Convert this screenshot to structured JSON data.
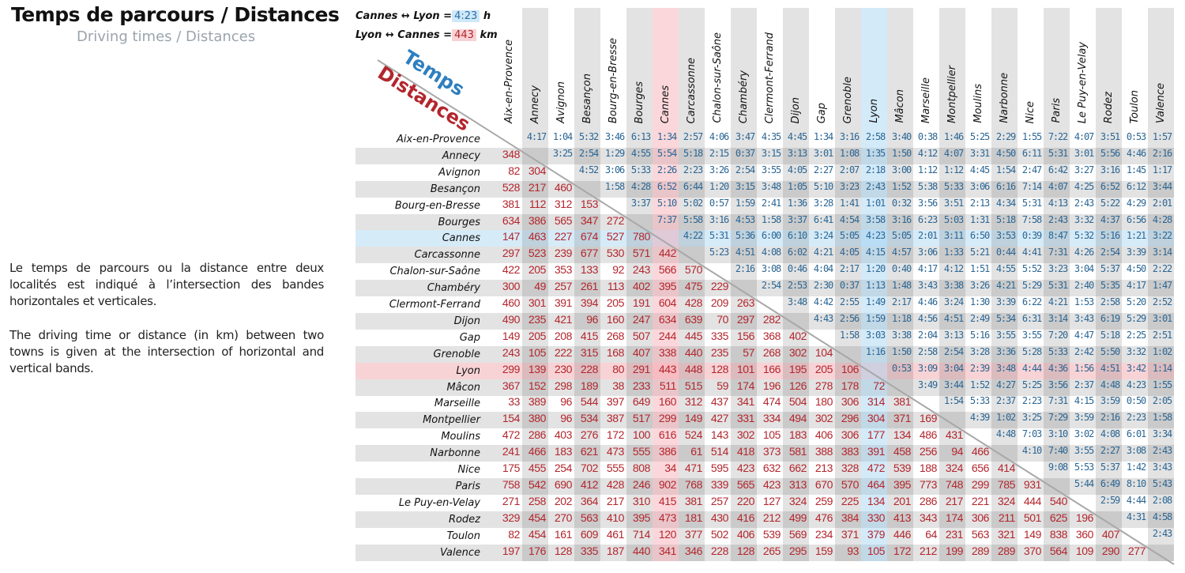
{
  "title": "Temps de parcours / Distances",
  "subtitle": "Driving times / Distances",
  "description_fr": "Le temps de parcours ou la distance entre deux localités est indiqué à l’intersection des bandes horizontales et verticales.",
  "description_en": "The driving time or distance (in km) between two towns is given at the intersection of horizontal and vertical bands.",
  "legend": {
    "time_example": {
      "pair": "Cannes ↔ Lyon =",
      "value": "4:23",
      "unit": "h"
    },
    "distance_example": {
      "pair": "Lyon ↔ Cannes =",
      "value": "443",
      "unit": "km"
    },
    "upper_label": "Temps",
    "lower_label": "Distances"
  },
  "colors": {
    "time_text": "#2b6694",
    "distance_text": "#b3262d",
    "cannes_band": "#f8d2d5",
    "lyon_band": "#cfe8f8",
    "band_gray": "#e2e2e2"
  },
  "highlight": {
    "pink_city": "Cannes",
    "blue_city": "Lyon"
  },
  "cities": [
    "Aix-en-Provence",
    "Annecy",
    "Avignon",
    "Besançon",
    "Bourg-en-Bresse",
    "Bourges",
    "Cannes",
    "Carcassonne",
    "Chalon-sur-Saône",
    "Chambéry",
    "Clermont-Ferrand",
    "Dijon",
    "Gap",
    "Grenoble",
    "Lyon",
    "Mâcon",
    "Marseille",
    "Montpellier",
    "Moulins",
    "Narbonne",
    "Nice",
    "Paris",
    "Le Puy-en-Velay",
    "Rodez",
    "Toulon",
    "Valence"
  ],
  "matrix": [
    [
      "",
      "4:17",
      "1:04",
      "5:32",
      "3:46",
      "6:13",
      "1:34",
      "2:57",
      "4:06",
      "3:47",
      "4:35",
      "4:45",
      "1:34",
      "3:16",
      "2:58",
      "3:40",
      "0:38",
      "1:46",
      "5:25",
      "2:29",
      "1:55",
      "7:22",
      "4:07",
      "3:51",
      "0:53",
      "1:57"
    ],
    [
      "348",
      "",
      "3:25",
      "2:54",
      "1:29",
      "4:55",
      "5:54",
      "5:18",
      "2:15",
      "0:37",
      "3:15",
      "3:13",
      "3:01",
      "1:08",
      "1:35",
      "1:50",
      "4:12",
      "4:07",
      "3:31",
      "4:50",
      "6:11",
      "5:31",
      "3:01",
      "5:56",
      "4:46",
      "2:16"
    ],
    [
      "82",
      "304",
      "",
      "4:52",
      "3:06",
      "5:33",
      "2:26",
      "2:23",
      "3:26",
      "2:54",
      "3:55",
      "4:05",
      "2:27",
      "2:07",
      "2:18",
      "3:00",
      "1:12",
      "1:12",
      "4:45",
      "1:54",
      "2:47",
      "6:42",
      "3:27",
      "3:16",
      "1:45",
      "1:17"
    ],
    [
      "528",
      "217",
      "460",
      "",
      "1:58",
      "4:28",
      "6:52",
      "6:44",
      "1:20",
      "3:15",
      "3:48",
      "1:05",
      "5:10",
      "3:23",
      "2:43",
      "1:52",
      "5:38",
      "5:33",
      "3:06",
      "6:16",
      "7:14",
      "4:07",
      "4:25",
      "6:52",
      "6:12",
      "3:44"
    ],
    [
      "381",
      "112",
      "312",
      "153",
      "",
      "3:37",
      "5:10",
      "5:02",
      "0:57",
      "1:59",
      "2:41",
      "1:36",
      "3:28",
      "1:41",
      "1:01",
      "0:32",
      "3:56",
      "3:51",
      "2:13",
      "4:34",
      "5:31",
      "4:13",
      "2:43",
      "5:22",
      "4:29",
      "2:01"
    ],
    [
      "634",
      "386",
      "565",
      "347",
      "272",
      "",
      "7:37",
      "5:58",
      "3:16",
      "4:53",
      "1:58",
      "3:37",
      "6:41",
      "4:54",
      "3:58",
      "3:16",
      "6:23",
      "5:03",
      "1:31",
      "5:18",
      "7:58",
      "2:43",
      "3:32",
      "4:37",
      "6:56",
      "4:28"
    ],
    [
      "147",
      "463",
      "227",
      "674",
      "527",
      "780",
      "",
      "4:22",
      "5:31",
      "5:36",
      "6:00",
      "6:10",
      "3:24",
      "5:05",
      "4:23",
      "5:05",
      "2:01",
      "3:11",
      "6:50",
      "3:53",
      "0:39",
      "8:47",
      "5:32",
      "5:16",
      "1:21",
      "3:22"
    ],
    [
      "297",
      "523",
      "239",
      "677",
      "530",
      "571",
      "442",
      "",
      "5:23",
      "4:51",
      "4:08",
      "6:02",
      "4:21",
      "4:05",
      "4:15",
      "4:57",
      "3:06",
      "1:33",
      "5:21",
      "0:44",
      "4:41",
      "7:31",
      "4:26",
      "2:54",
      "3:39",
      "3:14"
    ],
    [
      "422",
      "205",
      "353",
      "133",
      "92",
      "243",
      "566",
      "570",
      "",
      "2:16",
      "3:08",
      "0:46",
      "4:04",
      "2:17",
      "1:20",
      "0:40",
      "4:17",
      "4:12",
      "1:51",
      "4:55",
      "5:52",
      "3:23",
      "3:04",
      "5:37",
      "4:50",
      "2:22"
    ],
    [
      "300",
      "49",
      "257",
      "261",
      "113",
      "402",
      "395",
      "475",
      "229",
      "",
      "2:54",
      "2:53",
      "2:30",
      "0:37",
      "1:13",
      "1:48",
      "3:43",
      "3:38",
      "3:26",
      "4:21",
      "5:29",
      "5:31",
      "2:40",
      "5:35",
      "4:17",
      "1:47"
    ],
    [
      "460",
      "301",
      "391",
      "394",
      "205",
      "191",
      "604",
      "428",
      "209",
      "263",
      "",
      "3:48",
      "4:42",
      "2:55",
      "1:49",
      "2:17",
      "4:46",
      "3:24",
      "1:30",
      "3:39",
      "6:22",
      "4:21",
      "1:53",
      "2:58",
      "5:20",
      "2:52"
    ],
    [
      "490",
      "235",
      "421",
      "96",
      "160",
      "247",
      "634",
      "639",
      "70",
      "297",
      "282",
      "",
      "4:43",
      "2:56",
      "1:59",
      "1:18",
      "4:56",
      "4:51",
      "2:49",
      "5:34",
      "6:31",
      "3:14",
      "3:43",
      "6:19",
      "5:29",
      "3:01"
    ],
    [
      "149",
      "205",
      "208",
      "415",
      "268",
      "507",
      "244",
      "445",
      "335",
      "156",
      "368",
      "402",
      "",
      "1:58",
      "3:03",
      "3:38",
      "2:04",
      "3:13",
      "5:16",
      "3:55",
      "3:55",
      "7:20",
      "4:47",
      "5:18",
      "2:25",
      "2:51"
    ],
    [
      "243",
      "105",
      "222",
      "315",
      "168",
      "407",
      "338",
      "440",
      "235",
      "57",
      "268",
      "302",
      "104",
      "",
      "1:16",
      "1:50",
      "2:58",
      "2:54",
      "3:28",
      "3:36",
      "5:28",
      "5:33",
      "2:42",
      "5:50",
      "3:32",
      "1:02"
    ],
    [
      "299",
      "139",
      "230",
      "228",
      "80",
      "291",
      "443",
      "448",
      "128",
      "101",
      "166",
      "195",
      "205",
      "106",
      "",
      "0:53",
      "3:09",
      "3:04",
      "2:39",
      "3:48",
      "4:44",
      "4:36",
      "1:56",
      "4:51",
      "3:42",
      "1:14"
    ],
    [
      "367",
      "152",
      "298",
      "189",
      "38",
      "233",
      "511",
      "515",
      "59",
      "174",
      "196",
      "126",
      "278",
      "178",
      "72",
      "",
      "3:49",
      "3:44",
      "1:52",
      "4:27",
      "5:25",
      "3:56",
      "2:37",
      "4:48",
      "4:23",
      "1:55"
    ],
    [
      "33",
      "389",
      "96",
      "544",
      "397",
      "649",
      "160",
      "312",
      "437",
      "341",
      "474",
      "504",
      "180",
      "306",
      "314",
      "381",
      "",
      "1:54",
      "5:33",
      "2:37",
      "2:23",
      "7:31",
      "4:15",
      "3:59",
      "0:50",
      "2:05"
    ],
    [
      "154",
      "380",
      "96",
      "534",
      "387",
      "517",
      "299",
      "149",
      "427",
      "331",
      "334",
      "494",
      "302",
      "296",
      "304",
      "371",
      "169",
      "",
      "4:39",
      "1:02",
      "3:25",
      "7:29",
      "3:59",
      "2:16",
      "2:23",
      "1:58"
    ],
    [
      "472",
      "286",
      "403",
      "276",
      "172",
      "100",
      "616",
      "524",
      "143",
      "302",
      "105",
      "183",
      "406",
      "306",
      "177",
      "134",
      "486",
      "431",
      "",
      "4:48",
      "7:03",
      "3:10",
      "3:02",
      "4:08",
      "6:01",
      "3:34"
    ],
    [
      "241",
      "466",
      "183",
      "621",
      "473",
      "555",
      "386",
      "61",
      "514",
      "418",
      "373",
      "581",
      "388",
      "383",
      "391",
      "458",
      "256",
      "94",
      "466",
      "",
      "4:10",
      "7:40",
      "3:55",
      "2:27",
      "3:08",
      "2:43"
    ],
    [
      "175",
      "455",
      "254",
      "702",
      "555",
      "808",
      "34",
      "471",
      "595",
      "423",
      "632",
      "662",
      "213",
      "328",
      "472",
      "539",
      "188",
      "324",
      "656",
      "414",
      "",
      "9:08",
      "5:53",
      "5:37",
      "1:42",
      "3:43"
    ],
    [
      "758",
      "542",
      "690",
      "412",
      "428",
      "246",
      "902",
      "768",
      "339",
      "565",
      "423",
      "313",
      "670",
      "570",
      "464",
      "395",
      "773",
      "748",
      "299",
      "785",
      "931",
      "",
      "5:44",
      "6:49",
      "8:10",
      "5:43"
    ],
    [
      "271",
      "258",
      "202",
      "364",
      "217",
      "310",
      "415",
      "381",
      "257",
      "220",
      "127",
      "324",
      "259",
      "225",
      "134",
      "201",
      "286",
      "217",
      "221",
      "324",
      "444",
      "540",
      "",
      "2:59",
      "4:44",
      "2:08"
    ],
    [
      "329",
      "454",
      "270",
      "563",
      "410",
      "395",
      "473",
      "181",
      "430",
      "416",
      "212",
      "499",
      "476",
      "384",
      "330",
      "413",
      "343",
      "174",
      "306",
      "211",
      "501",
      "625",
      "196",
      "",
      "4:31",
      "4:58"
    ],
    [
      "82",
      "454",
      "161",
      "609",
      "461",
      "714",
      "120",
      "377",
      "502",
      "406",
      "539",
      "569",
      "234",
      "371",
      "379",
      "446",
      "64",
      "231",
      "563",
      "321",
      "149",
      "838",
      "360",
      "407",
      "",
      "2:43"
    ],
    [
      "197",
      "176",
      "128",
      "335",
      "187",
      "440",
      "341",
      "346",
      "228",
      "128",
      "265",
      "295",
      "159",
      "93",
      "105",
      "172",
      "212",
      "199",
      "289",
      "289",
      "370",
      "564",
      "109",
      "290",
      "277",
      ""
    ]
  ]
}
